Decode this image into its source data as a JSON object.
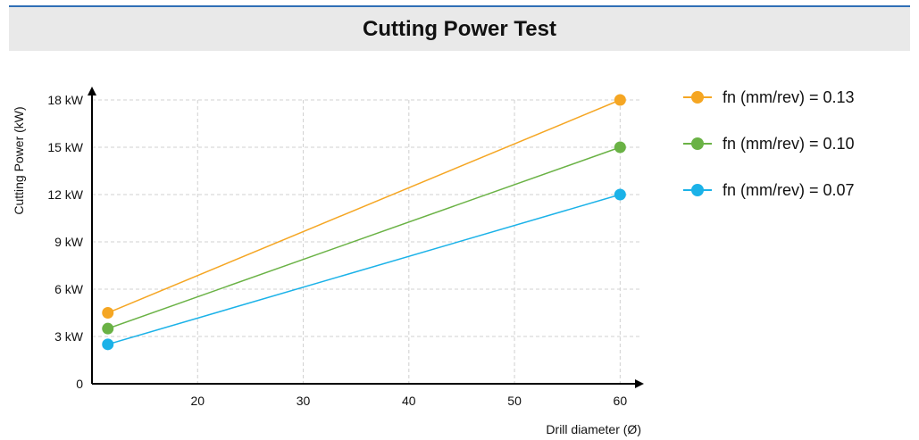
{
  "title": "Cutting Power Test",
  "colors": {
    "header_rule": "#2f6fb6",
    "header_bg": "#e9e9e9",
    "grid": "#d0d0d0",
    "axis": "#000000"
  },
  "legend": {
    "placement": "right",
    "items": [
      {
        "label": "fn (mm/rev) = 0.13",
        "color": "#f5a623"
      },
      {
        "label": "fn (mm/rev) = 0.10",
        "color": "#6ab245"
      },
      {
        "label": "fn (mm/rev) = 0.07",
        "color": "#1bb2e8"
      }
    ]
  },
  "chart_data": {
    "type": "line",
    "title": "Cutting Power Test",
    "xlabel": "Drill diameter (Ø)",
    "ylabel": "Cutting Power (kW)",
    "xlim": [
      10,
      62
    ],
    "ylim": [
      0,
      18
    ],
    "x_ticks": [
      20,
      30,
      40,
      50,
      60
    ],
    "x_tick_labels": [
      "20",
      "30",
      "40",
      "50",
      "60"
    ],
    "y_ticks": [
      0,
      3,
      6,
      9,
      12,
      15,
      18
    ],
    "y_tick_labels": [
      "0",
      "3 kW",
      "6 kW",
      "9 kW",
      "12 kW",
      "15 kW",
      "18 kW"
    ],
    "grid": true,
    "legend_position": "right",
    "series": [
      {
        "name": "fn (mm/rev) = 0.13",
        "color": "#f5a623",
        "x": [
          11.5,
          60
        ],
        "y": [
          4.5,
          18
        ]
      },
      {
        "name": "fn (mm/rev) = 0.10",
        "color": "#6ab245",
        "x": [
          11.5,
          60
        ],
        "y": [
          3.5,
          15
        ]
      },
      {
        "name": "fn (mm/rev) = 0.07",
        "color": "#1bb2e8",
        "x": [
          11.5,
          60
        ],
        "y": [
          2.5,
          12
        ]
      }
    ]
  }
}
